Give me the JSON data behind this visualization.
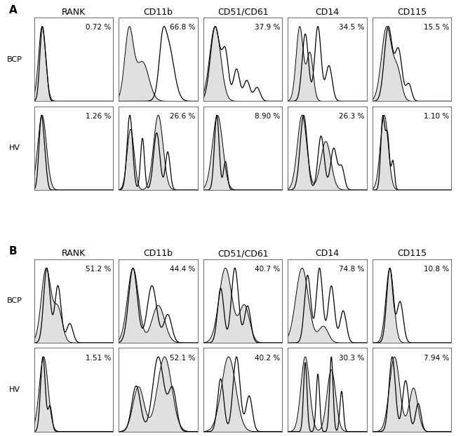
{
  "panel_A_label": "A",
  "panel_B_label": "B",
  "col_labels": [
    "RANK",
    "CD11b",
    "CD51/CD61",
    "CD14",
    "CD115"
  ],
  "row_labels_A": [
    "BCP",
    "HV"
  ],
  "row_labels_B": [
    "BCP",
    "HV"
  ],
  "percentages": {
    "A": [
      [
        "0.72 %",
        "66.8 %",
        "37.9 %",
        "34.5 %",
        "15.5 %"
      ],
      [
        "1.26 %",
        "26.6 %",
        "8.90 %",
        "26.3 %",
        "1.10 %"
      ]
    ],
    "B": [
      [
        "51.2 %",
        "44.4 %",
        "40.7 %",
        "74.8 %",
        "10.8 %"
      ],
      [
        "1.51 %",
        "52.1 %",
        "40.2 %",
        "30.3 %",
        "7.94 %"
      ]
    ]
  },
  "fill_color": "#c8c8c8",
  "line_color": "#000000",
  "background_color": "#ffffff",
  "label_fontsize": 8,
  "col_label_fontsize": 9,
  "pct_fontsize": 7.5,
  "panel_label_fontsize": 11
}
